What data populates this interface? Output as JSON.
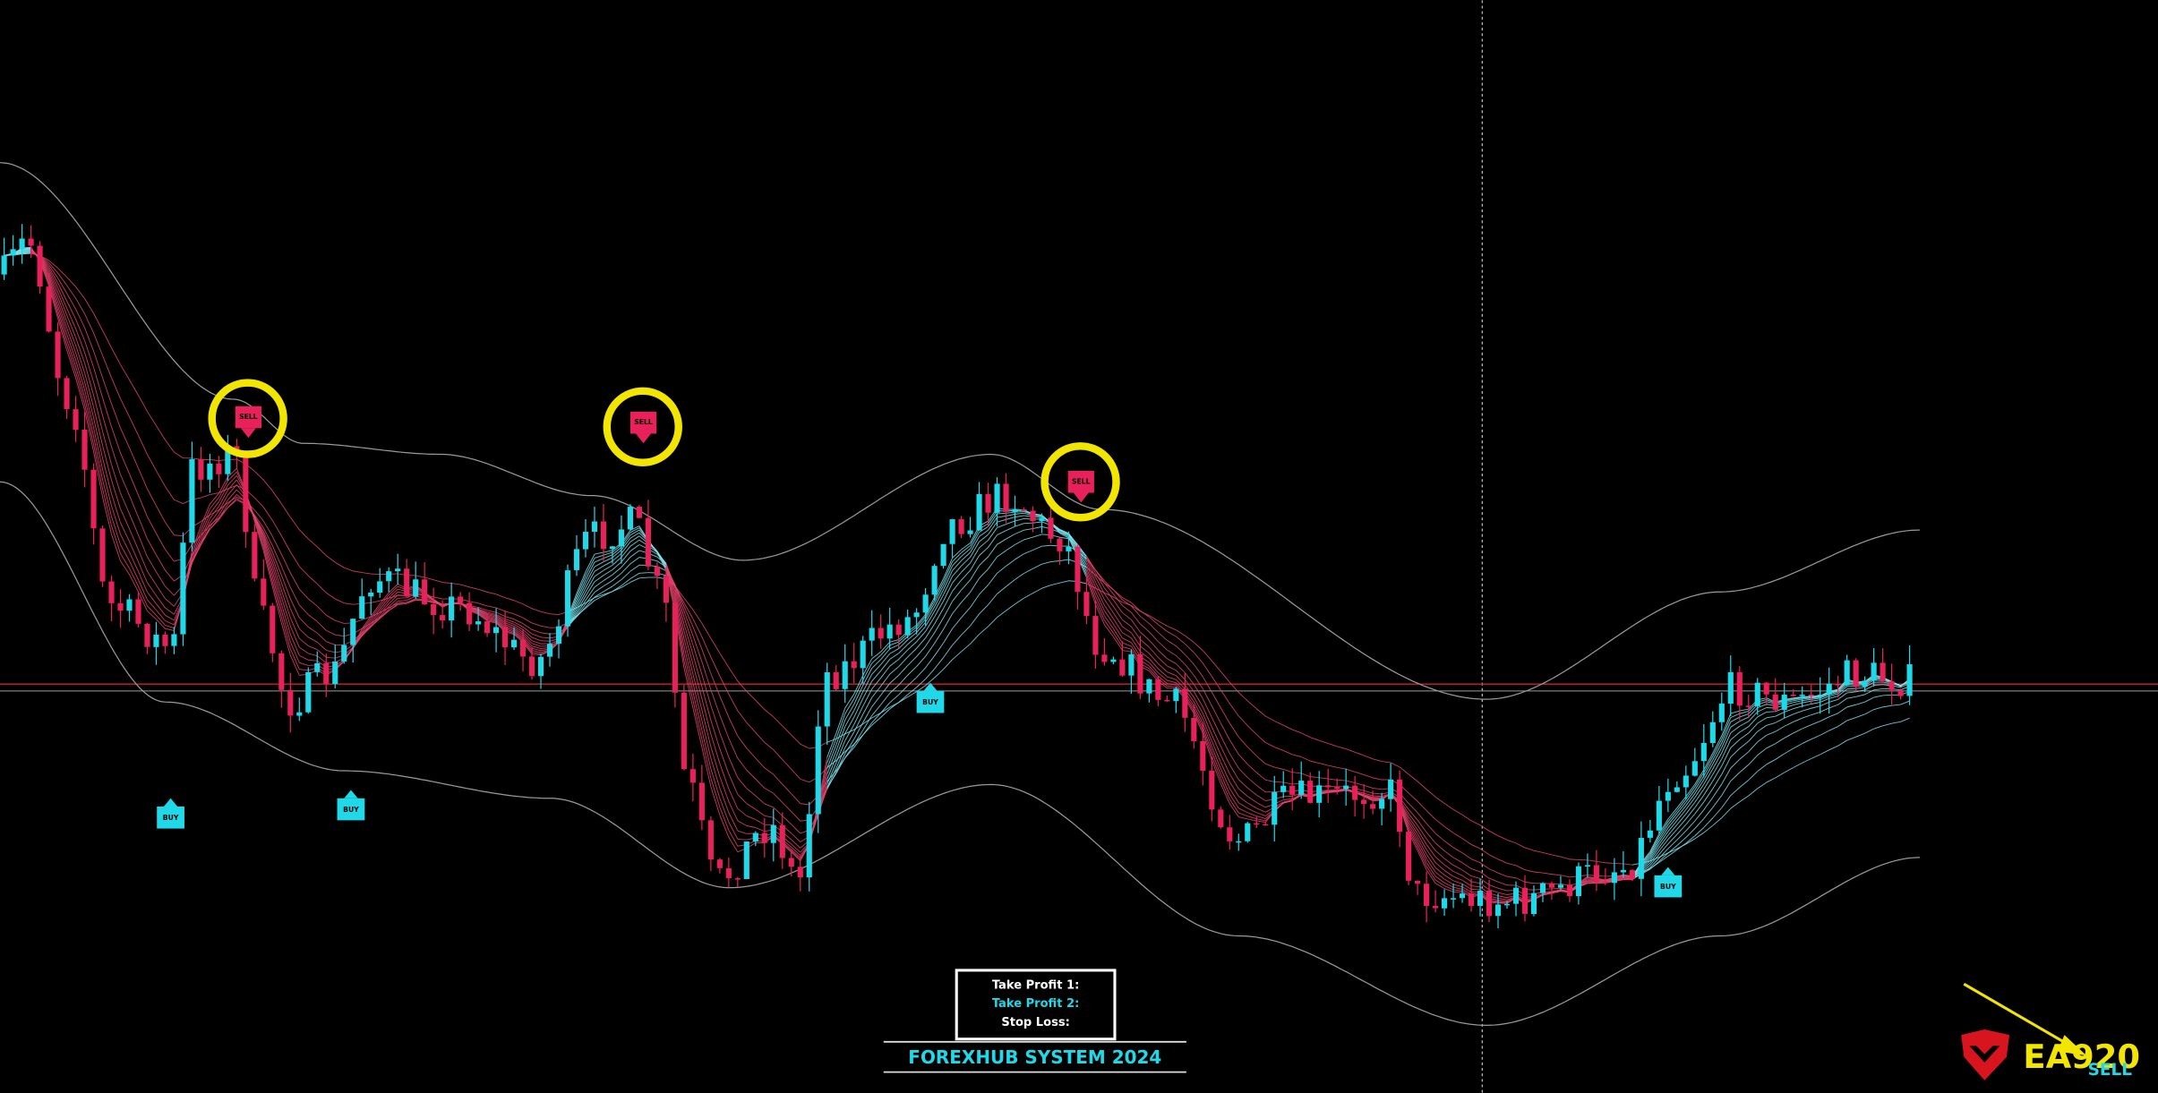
{
  "signals": {
    "sell": [
      "SELL",
      "SELL",
      "SELL"
    ],
    "buy": [
      "BUY",
      "BUY",
      "BUY",
      "BUY"
    ]
  },
  "panel": {
    "lines": [
      "Take Profit 1:",
      "Take Profit 2:",
      "Stop Loss:"
    ],
    "title": "FOREXHUB SYSTEM 2024"
  },
  "logo": {
    "brand": "EA920",
    "signal": "SELL"
  }
}
